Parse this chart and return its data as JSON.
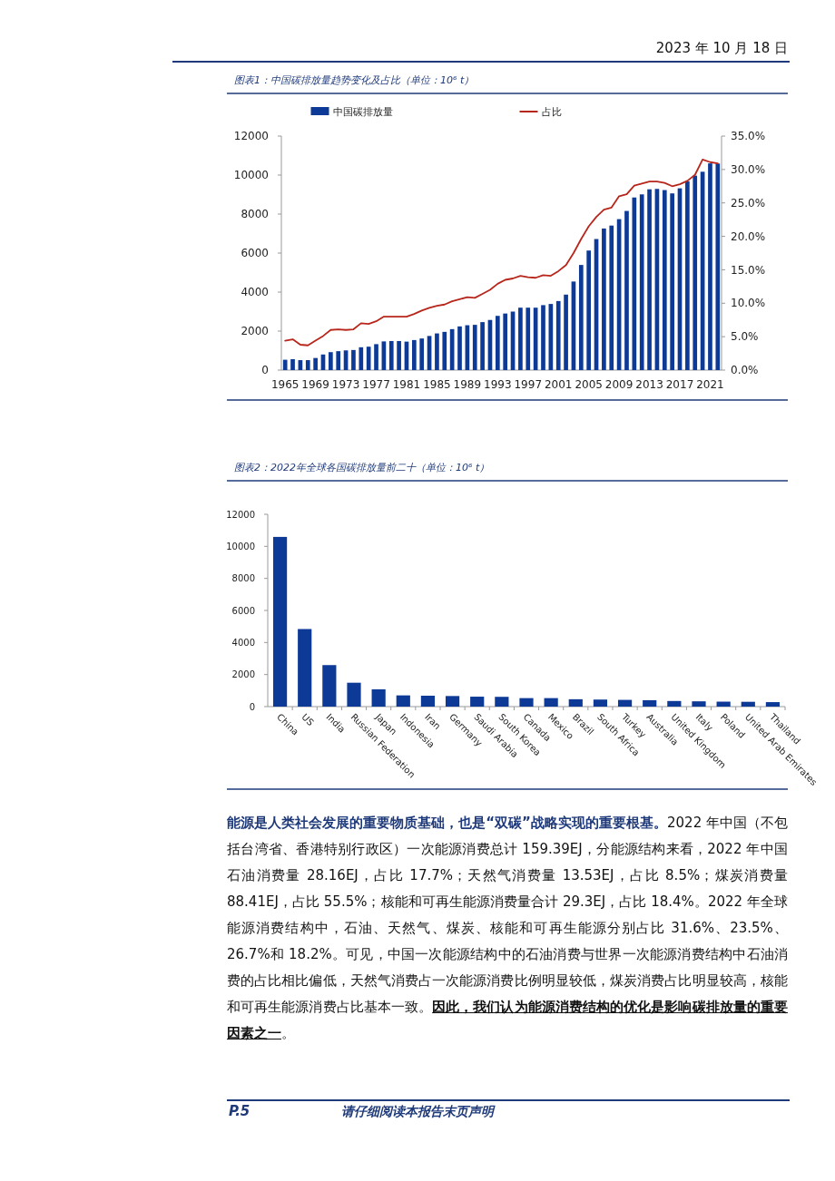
{
  "chart_data": [
    {
      "type": "bar",
      "title": "图表1：中国碳排放量趋势变化及占比（单位：10⁶ t）",
      "legend": "top",
      "categories": [
        "1965",
        null,
        null,
        null,
        "1969",
        null,
        null,
        null,
        "1973",
        null,
        null,
        null,
        "1977",
        null,
        null,
        null,
        "1981",
        null,
        null,
        null,
        "1985",
        null,
        null,
        null,
        "1989",
        null,
        null,
        null,
        "1993",
        null,
        null,
        null,
        "1997",
        null,
        null,
        null,
        "2001",
        null,
        null,
        null,
        "2005",
        null,
        null,
        null,
        "2009",
        null,
        null,
        null,
        "2013",
        null,
        null,
        null,
        "2017",
        null,
        null,
        null,
        "2021",
        null
      ],
      "ylim": [
        0,
        12000
      ],
      "yticks": [
        0,
        2000,
        4000,
        6000,
        8000,
        10000,
        12000
      ],
      "y2lim": [
        0,
        35
      ],
      "y2ticks": [
        {
          "value": 0,
          "label": "0.0%"
        },
        {
          "value": 5,
          "label": "5.0%"
        },
        {
          "value": 10,
          "label": "10.0%"
        },
        {
          "value": 15,
          "label": "15.0%"
        },
        {
          "value": 20,
          "label": "20.0%"
        },
        {
          "value": 25,
          "label": "25.0%"
        },
        {
          "value": 30,
          "label": "30.0%"
        },
        {
          "value": 35,
          "label": "35.0%"
        }
      ],
      "series": [
        {
          "name": "中国碳排放量",
          "type": "bar",
          "color": "#0d3a96",
          "values": [
            530,
            560,
            510,
            510,
            620,
            800,
            920,
            970,
            1010,
            1030,
            1170,
            1200,
            1330,
            1470,
            1490,
            1490,
            1460,
            1540,
            1620,
            1750,
            1880,
            1960,
            2100,
            2240,
            2300,
            2320,
            2460,
            2570,
            2780,
            2900,
            3000,
            3200,
            3200,
            3200,
            3330,
            3390,
            3540,
            3870,
            4540,
            5390,
            6130,
            6720,
            7260,
            7410,
            7740,
            8160,
            8850,
            9010,
            9270,
            9290,
            9230,
            9060,
            9320,
            9680,
            9970,
            10170,
            10600,
            10590
          ]
        },
        {
          "name": "占比",
          "type": "line",
          "axis": "y2",
          "color": "#b8261b",
          "values": [
            4.4,
            4.6,
            3.8,
            3.7,
            4.4,
            5.1,
            6.0,
            6.1,
            6.0,
            6.1,
            7.0,
            6.9,
            7.3,
            8.0,
            8.0,
            8.0,
            8.0,
            8.4,
            8.9,
            9.3,
            9.6,
            9.8,
            10.3,
            10.6,
            10.9,
            10.8,
            11.4,
            12.0,
            12.9,
            13.5,
            13.7,
            14.1,
            13.9,
            13.8,
            14.2,
            14.1,
            14.8,
            15.7,
            17.5,
            19.6,
            21.5,
            22.9,
            24.0,
            24.3,
            26.0,
            26.3,
            27.6,
            27.9,
            28.2,
            28.2,
            28.0,
            27.5,
            27.8,
            28.3,
            29.2,
            31.5,
            31.1,
            30.9
          ]
        }
      ]
    },
    {
      "type": "bar",
      "title": "图表2：2022年全球各国碳排放量前二十（单位：10⁶ t）",
      "categories": [
        "China",
        "US",
        "India",
        "Russian Federation",
        "Japan",
        "Indonesia",
        "Iran",
        "Germany",
        "Saudi Arabia",
        "South Korea",
        "Canada",
        "Mexico",
        "Brazil",
        "South Africa",
        "Turkey",
        "Australia",
        "United Kingdom",
        "Italy",
        "Poland",
        "United Arab Emirates",
        "Thailand"
      ],
      "ylim": [
        0,
        12000
      ],
      "yticks": [
        0,
        2000,
        4000,
        6000,
        8000,
        10000,
        12000
      ],
      "series": [
        {
          "color": "#0d3a96",
          "values": [
            10590,
            4840,
            2590,
            1490,
            1080,
            700,
            680,
            660,
            620,
            610,
            530,
            530,
            460,
            440,
            420,
            400,
            350,
            330,
            310,
            300,
            280
          ]
        }
      ]
    },
    {
      "type": "other",
      "annotations": [
        "2023 年 10 月 18 日",
        "能源是人类社会发展的重要物质基础，也是“双碳”战略实现的重要根基。",
        "2022 年中国（不包括台湾省、香港特别行政区）一次能源消费总计 159.39EJ，分能源结构来看，2022 年中国石油消费量 28.16EJ，占比 17.7%；天然气消费量 13.53EJ，占比 8.5%；煤炭消费量 88.41EJ，占比 55.5%；核能和可再生能源消费量合计 29.3EJ，占比 18.4%。2022 年全球能源消费结构中，石油、天然气、煤炭、核能和可再生能源分别占比 31.6%、23.5%、26.7%和 18.2%。可见，中国一次能源结构中的石油消费与世界一次能源消费结构中石油消费的占比相比偏低，天然气消费占一次能源消费比例明显较低，煤炭消费占比明显较高，核能和可再生能源消费占比基本一致。",
        "因此，我们认为能源消费结构的优化是影响碳排放量的重要因素之一",
        "。",
        "P.5",
        "请仔细阅读本报告末页声明"
      ]
    }
  ]
}
